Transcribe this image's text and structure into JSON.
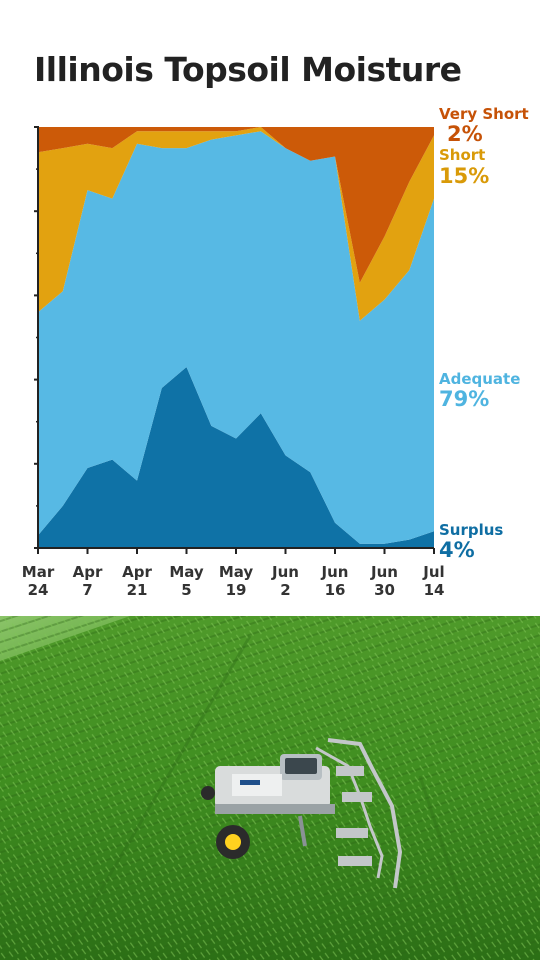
{
  "chart_data": {
    "type": "area",
    "stacked": true,
    "percent": true,
    "title": "Illinois Topsoil Moisture",
    "ylim": [
      0,
      100
    ],
    "x": [
      "Mar 24",
      "Mar 31",
      "Apr 7",
      "Apr 14",
      "Apr 21",
      "Apr 28",
      "May 5",
      "May 12",
      "May 19",
      "May 26",
      "Jun 2",
      "Jun 9",
      "Jun 16",
      "Jun 23",
      "Jun 30",
      "Jul 7",
      "Jul 14"
    ],
    "x_tick_labels": [
      {
        "index": 0,
        "line1": "Mar",
        "line2": "24"
      },
      {
        "index": 2,
        "line1": "Apr",
        "line2": "7"
      },
      {
        "index": 4,
        "line1": "Apr",
        "line2": "21"
      },
      {
        "index": 6,
        "line1": "May",
        "line2": "5"
      },
      {
        "index": 8,
        "line1": "May",
        "line2": "19"
      },
      {
        "index": 10,
        "line1": "Jun",
        "line2": "2"
      },
      {
        "index": 12,
        "line1": "Jun",
        "line2": "16"
      },
      {
        "index": 14,
        "line1": "Jun",
        "line2": "30"
      },
      {
        "index": 16,
        "line1": "Jul",
        "line2": "14"
      }
    ],
    "series": [
      {
        "name": "Surplus",
        "label_value": "4%",
        "color": "#0f72a6",
        "values": [
          3,
          10,
          19,
          21,
          16,
          38,
          43,
          29,
          26,
          32,
          22,
          18,
          6,
          1,
          1,
          2,
          4
        ]
      },
      {
        "name": "Adequate",
        "label_value": "79%",
        "color": "#57b9e4",
        "values": [
          53,
          51,
          66,
          62,
          80,
          57,
          52,
          68,
          72,
          67,
          73,
          74,
          87,
          53,
          58,
          64,
          79
        ]
      },
      {
        "name": "Short",
        "label_value": "15%",
        "color": "#e2a210",
        "values": [
          38,
          34,
          11,
          12,
          3,
          4,
          4,
          2,
          1,
          1,
          0,
          0,
          0,
          9,
          15,
          21,
          15
        ]
      },
      {
        "name": "Very Short",
        "label_value": "2%",
        "color": "#cc5a08",
        "values": [
          6,
          5,
          4,
          5,
          1,
          1,
          1,
          1,
          1,
          0,
          5,
          8,
          7,
          37,
          26,
          13,
          2
        ]
      }
    ],
    "y_ticks": [
      0,
      20,
      40,
      60,
      80,
      100
    ],
    "y_minor_ticks": [
      10,
      30,
      50,
      70,
      90
    ],
    "grid": false,
    "legend": "right, aligned with series ends"
  },
  "photo": {
    "icons": [
      "cornfield-photo",
      "sprayer-tractor-icon"
    ]
  }
}
